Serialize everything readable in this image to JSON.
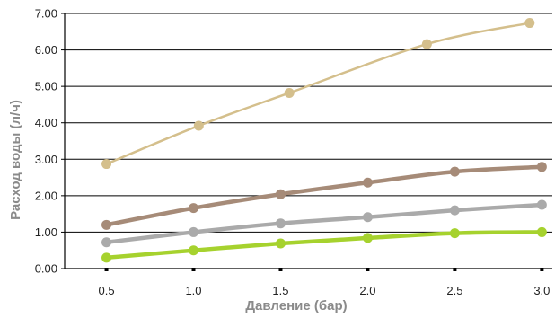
{
  "chart_data": {
    "type": "line",
    "xlabel": "Давление (бар)",
    "ylabel": "Расход воды (л/ч)",
    "xlim": [
      0.26,
      3.06
    ],
    "ylim": [
      0,
      7
    ],
    "x_ticks": [
      "0.5",
      "1.0",
      "1.5",
      "2.0",
      "2.5",
      "3.0"
    ],
    "x_tick_values": [
      0.5,
      1.0,
      1.5,
      2.0,
      2.5,
      3.0
    ],
    "y_ticks": [
      "0.00",
      "1.00",
      "2.00",
      "3.00",
      "4.00",
      "5.00",
      "6.00",
      "7.00"
    ],
    "y_tick_values": [
      0,
      1,
      2,
      3,
      4,
      5,
      6,
      7
    ],
    "grid": "horizontal",
    "series": [
      {
        "color": "#d4bf8c",
        "points": [
          [
            0.5,
            2.87
          ],
          [
            1.03,
            3.92
          ],
          [
            1.55,
            4.82
          ],
          [
            2.34,
            6.16
          ],
          [
            2.93,
            6.74
          ]
        ]
      },
      {
        "color": "#a68b78",
        "points": [
          [
            0.5,
            1.2
          ],
          [
            1.0,
            1.66
          ],
          [
            1.5,
            2.04
          ],
          [
            2.0,
            2.36
          ],
          [
            2.5,
            2.66
          ],
          [
            3.0,
            2.79
          ]
        ]
      },
      {
        "color": "#aaaaaa",
        "points": [
          [
            0.5,
            0.72
          ],
          [
            1.0,
            1.0
          ],
          [
            1.5,
            1.24
          ],
          [
            2.0,
            1.41
          ],
          [
            2.5,
            1.6
          ],
          [
            3.0,
            1.75
          ]
        ]
      },
      {
        "color": "#a6d22e",
        "points": [
          [
            0.5,
            0.3
          ],
          [
            1.0,
            0.5
          ],
          [
            1.5,
            0.69
          ],
          [
            2.0,
            0.84
          ],
          [
            2.5,
            0.97
          ],
          [
            3.0,
            1.0
          ]
        ]
      }
    ]
  }
}
